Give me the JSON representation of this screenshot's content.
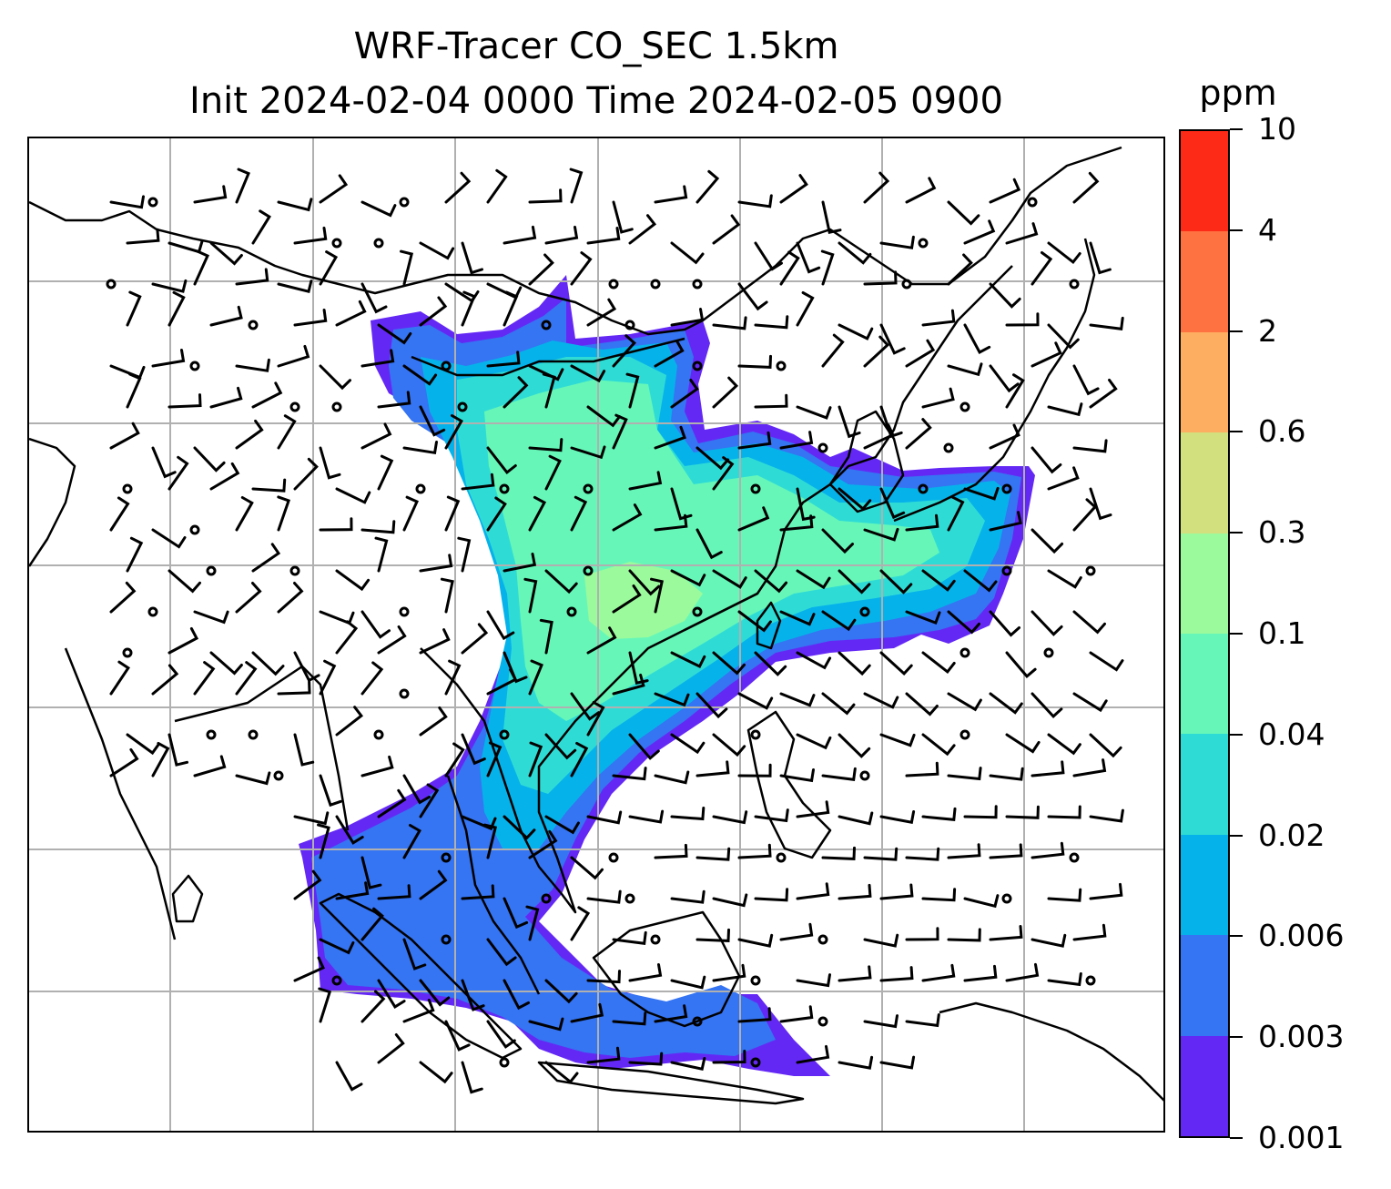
{
  "title": {
    "line1": "WRF-Tracer CO_SEC 1.5km",
    "line2": "Init 2024-02-04 0000 Time 2024-02-05 0900"
  },
  "colorbar": {
    "unit": "ppm",
    "levels": [
      "0.001",
      "0.003",
      "0.006",
      "0.02",
      "0.04",
      "0.1",
      "0.3",
      "0.6",
      "2",
      "4",
      "10"
    ],
    "colors": [
      "#6428f5",
      "#3574f2",
      "#06b2ea",
      "#2fdcd5",
      "#66f7b8",
      "#9bfa9c",
      "#d2e07e",
      "#fdae60",
      "#fe7140",
      "#fc2a17"
    ]
  },
  "map": {
    "gridlines": true,
    "coastline_color": "#000000",
    "wind_barbs": true
  }
}
